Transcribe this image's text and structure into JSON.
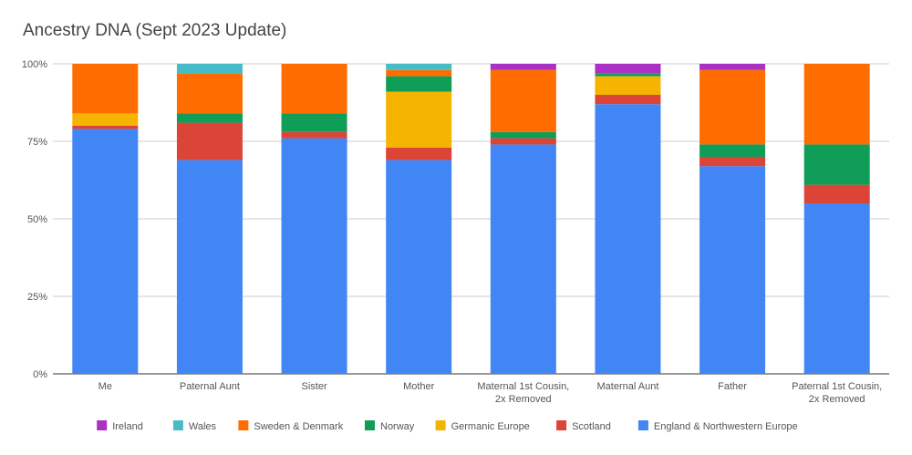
{
  "chart_data": {
    "type": "bar",
    "stacked": true,
    "title": "Ancestry DNA (Sept 2023 Update)",
    "xlabel": "",
    "ylabel": "",
    "ylim": [
      0,
      100
    ],
    "yticks": [
      0,
      25,
      50,
      75,
      100
    ],
    "ytick_labels": [
      "0%",
      "25%",
      "50%",
      "75%",
      "100%"
    ],
    "grid": true,
    "legend_position": "bottom",
    "categories": [
      [
        "Me"
      ],
      [
        "Paternal Aunt"
      ],
      [
        "Sister"
      ],
      [
        "Mother"
      ],
      [
        "Maternal 1st Cousin,",
        "2x Removed"
      ],
      [
        "Maternal Aunt"
      ],
      [
        "Father"
      ],
      [
        "Paternal 1st Cousin,",
        "2x Removed"
      ]
    ],
    "series": [
      {
        "name": "England & Northwestern Europe",
        "color": "#4285f4",
        "values": [
          79,
          69,
          76,
          69,
          74,
          87,
          67,
          55
        ]
      },
      {
        "name": "Scotland",
        "color": "#db4437",
        "values": [
          1,
          12,
          2,
          4,
          2,
          3,
          3,
          6
        ]
      },
      {
        "name": "Germanic Europe",
        "color": "#f4b400",
        "values": [
          4,
          0,
          0,
          18,
          0,
          6,
          0,
          0
        ]
      },
      {
        "name": "Norway",
        "color": "#0f9d58",
        "values": [
          0,
          3,
          6,
          5,
          2,
          1,
          4,
          13
        ]
      },
      {
        "name": "Sweden & Denmark",
        "color": "#ff6d01",
        "values": [
          16,
          13,
          16,
          2,
          20,
          0,
          24,
          26
        ]
      },
      {
        "name": "Wales",
        "color": "#46bdc6",
        "values": [
          0,
          3,
          0,
          2,
          0,
          0,
          0,
          0
        ]
      },
      {
        "name": "Ireland",
        "color": "#ab30c4",
        "values": [
          0,
          0,
          0,
          0,
          2,
          3,
          2,
          0
        ]
      }
    ],
    "legend_order": [
      "Ireland",
      "Wales",
      "Sweden & Denmark",
      "Norway",
      "Germanic Europe",
      "Scotland",
      "England & Northwestern Europe"
    ]
  }
}
